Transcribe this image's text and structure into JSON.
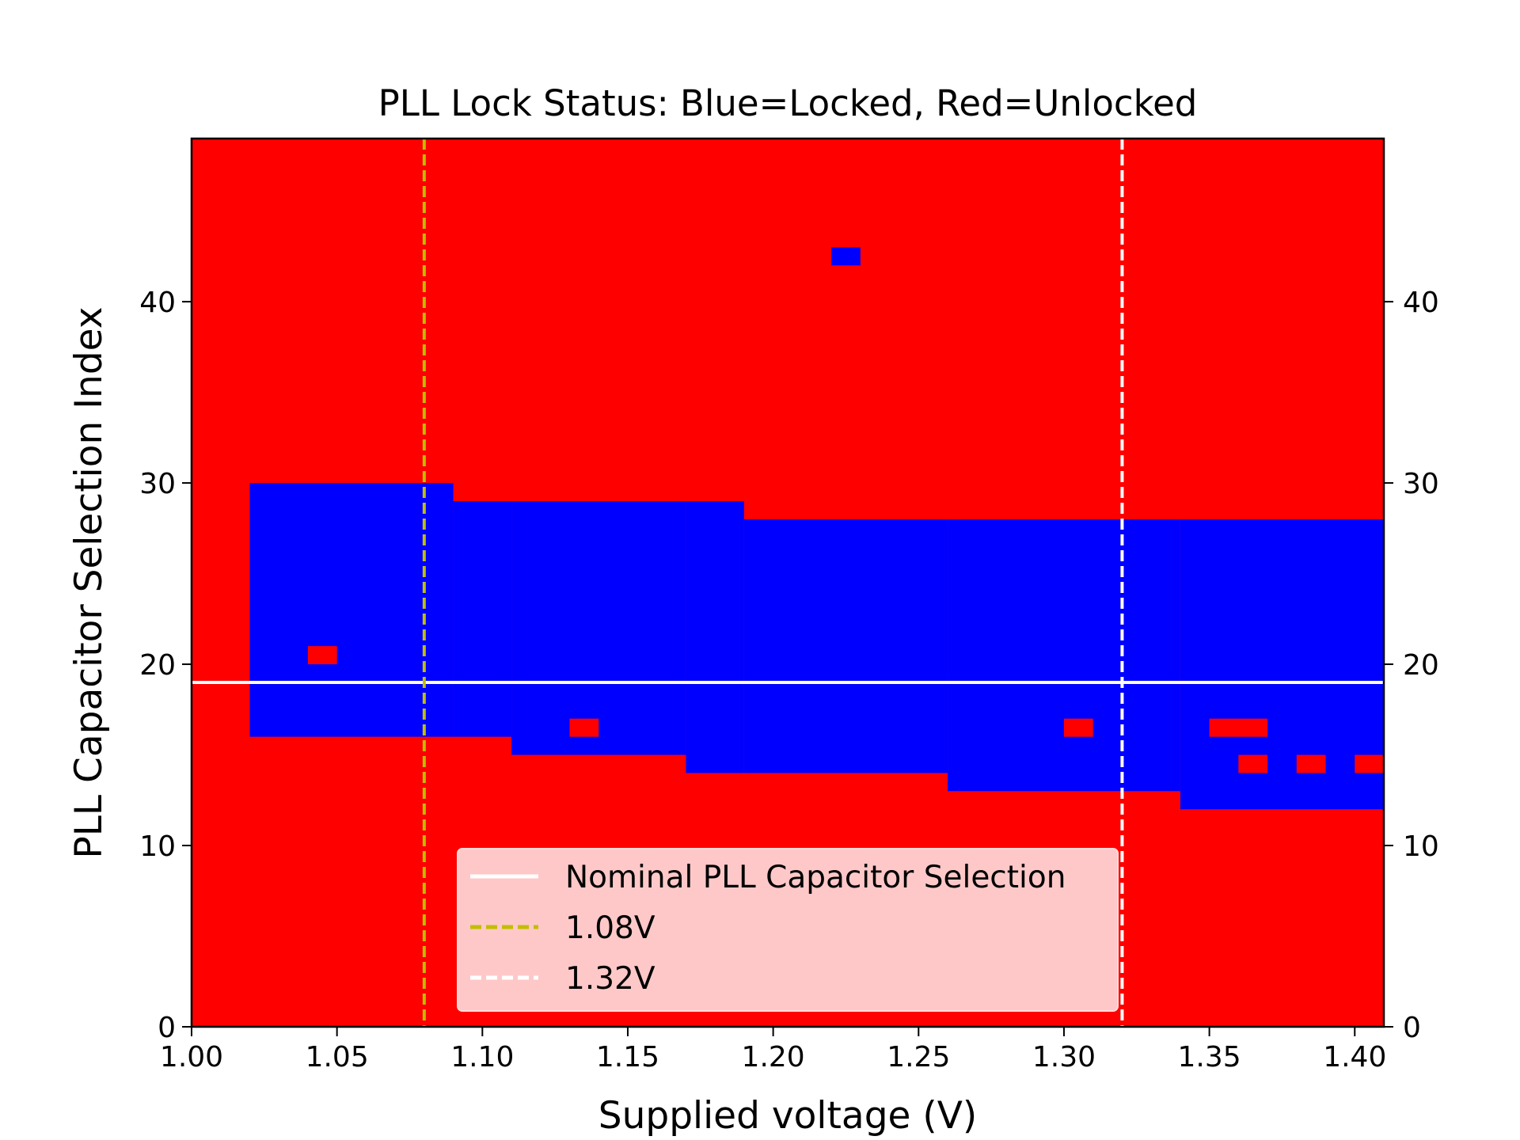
{
  "chart_data": {
    "type": "heatmap",
    "title": "PLL Lock Status: Blue=Locked, Red=Unlocked",
    "xlabel": "Supplied voltage (V)",
    "ylabel": "PLL Capacitor Selection Index",
    "xlim": [
      1.0,
      1.41
    ],
    "ylim": [
      0,
      49
    ],
    "x_ticks": [
      "1.00",
      "1.05",
      "1.10",
      "1.15",
      "1.20",
      "1.25",
      "1.30",
      "1.35",
      "1.40"
    ],
    "y_ticks": [
      "0",
      "10",
      "20",
      "30",
      "40"
    ],
    "y_ticks_right": [
      "0",
      "10",
      "20",
      "30",
      "40"
    ],
    "colors": {
      "locked": "#0000ff",
      "unlocked": "#ff0000",
      "nominal": "#ffffff",
      "v_low": "#bfbf00",
      "v_high": "#ffffff",
      "legend_bg": "#ffcccc"
    },
    "background": "unlocked",
    "locked_regions": [
      {
        "x": [
          1.02,
          1.09
        ],
        "y": [
          16,
          30
        ]
      },
      {
        "x": [
          1.09,
          1.11
        ],
        "y": [
          16,
          29
        ]
      },
      {
        "x": [
          1.11,
          1.17
        ],
        "y": [
          15,
          29
        ]
      },
      {
        "x": [
          1.17,
          1.19
        ],
        "y": [
          14,
          29
        ]
      },
      {
        "x": [
          1.19,
          1.26
        ],
        "y": [
          14,
          28
        ]
      },
      {
        "x": [
          1.26,
          1.34
        ],
        "y": [
          13,
          28
        ]
      },
      {
        "x": [
          1.34,
          1.41
        ],
        "y": [
          12,
          28
        ]
      },
      {
        "x": [
          1.22,
          1.23
        ],
        "y": [
          42,
          43
        ]
      }
    ],
    "unlocked_points": [
      {
        "x": [
          1.04,
          1.05
        ],
        "y": [
          20,
          21
        ]
      },
      {
        "x": [
          1.13,
          1.14
        ],
        "y": [
          16,
          17
        ]
      },
      {
        "x": [
          1.3,
          1.31
        ],
        "y": [
          16,
          17
        ]
      },
      {
        "x": [
          1.35,
          1.37
        ],
        "y": [
          16,
          17
        ]
      },
      {
        "x": [
          1.36,
          1.37
        ],
        "y": [
          14,
          15
        ]
      },
      {
        "x": [
          1.38,
          1.39
        ],
        "y": [
          14,
          15
        ]
      },
      {
        "x": [
          1.4,
          1.41
        ],
        "y": [
          14,
          15
        ]
      }
    ],
    "lines": [
      {
        "name": "Nominal PLL Capacitor Selection",
        "orientation": "horizontal",
        "value": 19,
        "style": "solid",
        "color": "nominal"
      },
      {
        "name": "1.08V",
        "orientation": "vertical",
        "value": 1.08,
        "style": "dashed",
        "color": "v_low"
      },
      {
        "name": "1.32V",
        "orientation": "vertical",
        "value": 1.32,
        "style": "dashed",
        "color": "v_high"
      }
    ],
    "legend_placement": "lower-center"
  }
}
